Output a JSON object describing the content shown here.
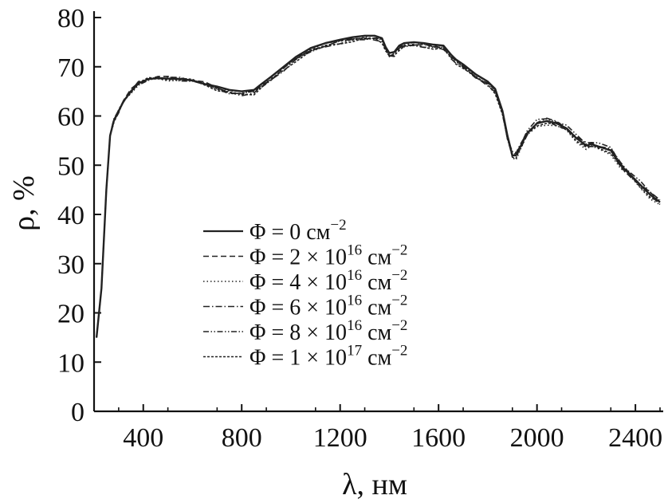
{
  "chart_data": {
    "type": "line",
    "title": "",
    "xlabel": "λ, нм",
    "ylabel": "ρ, %",
    "xlim": [
      200,
      2500
    ],
    "ylim": [
      0,
      80
    ],
    "x_ticks": [
      400,
      800,
      1200,
      1600,
      2000,
      2400
    ],
    "y_ticks": [
      0,
      10,
      20,
      30,
      40,
      50,
      60,
      70,
      80
    ],
    "grid": false,
    "legend_position": "left-center",
    "series": [
      {
        "name": "Φ = 0 см−2",
        "legend_parts": {
          "pre": "Φ = 0 см",
          "sup1": "",
          "mid": "",
          "sup2": "−2"
        },
        "dash": "solid",
        "offsets": [
          0.0,
          0.0,
          0.0
        ],
        "noise": 0.0
      },
      {
        "name": "Φ = 2 × 10^16 см−2",
        "legend_parts": {
          "pre": "Φ = 2 × 10",
          "sup1": "16",
          "mid": " см",
          "sup2": "−2"
        },
        "dash": "dashed",
        "offsets": [
          0.2,
          -0.4,
          -0.2
        ],
        "noise": 0.3
      },
      {
        "name": "Φ = 4 × 10^16 см−2",
        "legend_parts": {
          "pre": "Φ = 4 × 10",
          "sup1": "16",
          "mid": " см",
          "sup2": "−2"
        },
        "dash": "dotted",
        "offsets": [
          -0.2,
          -0.3,
          -0.6
        ],
        "noise": 0.3
      },
      {
        "name": "Φ = 6 × 10^16 см−2",
        "legend_parts": {
          "pre": "Φ = 6 × 10",
          "sup1": "16",
          "mid": " см",
          "sup2": "−2"
        },
        "dash": "dashdot",
        "offsets": [
          0.1,
          -0.6,
          0.3
        ],
        "noise": 0.3
      },
      {
        "name": "Φ = 8 × 10^16 см−2",
        "legend_parts": {
          "pre": "Φ = 8 × 10",
          "sup1": "16",
          "mid": " см",
          "sup2": "−2"
        },
        "dash": "dashdotdot",
        "offsets": [
          -0.1,
          -0.5,
          0.5
        ],
        "noise": 0.3
      },
      {
        "name": "Φ = 1 × 10^17 см−2",
        "legend_parts": {
          "pre": "Φ = 1 × 10",
          "sup1": "17",
          "mid": " см",
          "sup2": "−2"
        },
        "dash": "densedash",
        "offsets": [
          0.0,
          -0.7,
          -0.3
        ],
        "noise": 0.3
      }
    ],
    "base_curve": {
      "x": [
        210,
        230,
        250,
        265,
        280,
        300,
        320,
        350,
        380,
        420,
        460,
        500,
        550,
        600,
        650,
        700,
        750,
        800,
        850,
        880,
        920,
        970,
        1020,
        1080,
        1140,
        1200,
        1250,
        1300,
        1340,
        1370,
        1385,
        1400,
        1420,
        1440,
        1460,
        1500,
        1540,
        1580,
        1620,
        1650,
        1670,
        1700,
        1750,
        1800,
        1830,
        1860,
        1880,
        1900,
        1915,
        1930,
        1960,
        2000,
        2040,
        2080,
        2120,
        2160,
        2200,
        2220,
        2250,
        2300,
        2340,
        2380,
        2420,
        2460,
        2500
      ],
      "y": [
        15,
        25,
        45,
        56,
        59,
        61,
        63,
        65,
        66.6,
        67.5,
        67.7,
        67.6,
        67.5,
        67.2,
        66.5,
        66.0,
        65.3,
        65.0,
        65.3,
        66.5,
        68.0,
        70.0,
        72.0,
        73.8,
        74.8,
        75.5,
        76.0,
        76.3,
        76.3,
        75.8,
        74.0,
        72.8,
        73.0,
        74.3,
        74.8,
        75.0,
        74.8,
        74.5,
        74.3,
        72.5,
        71.5,
        70.5,
        68.5,
        67.0,
        65.5,
        61.0,
        56.0,
        52.0,
        52.0,
        53.5,
        56.5,
        58.5,
        59.0,
        58.5,
        57.5,
        55.5,
        54.0,
        54.3,
        53.8,
        53.0,
        50.0,
        48.0,
        46.0,
        44.0,
        42.5
      ]
    }
  }
}
